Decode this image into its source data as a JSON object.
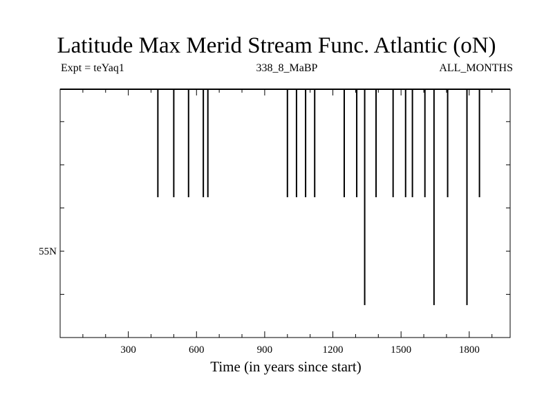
{
  "chart_data": {
    "type": "line",
    "title": "Latitude Max Merid Stream Func. Atlantic (oN)",
    "subtitle_left": "Expt = teYaq1",
    "subtitle_center": "338_8_MaBP",
    "subtitle_right": "ALL_MONTHS",
    "xlabel": "Time (in years since start)",
    "ylabel": "",
    "xlim": [
      0,
      1980
    ],
    "ylim": [
      53.0,
      58.75
    ],
    "x_ticks": [
      300,
      600,
      900,
      1200,
      1500,
      1800
    ],
    "x_tick_labels": [
      "300",
      "600",
      "900",
      "1200",
      "1500",
      "1800"
    ],
    "x_minor_step": 100,
    "y_ticks": [
      54,
      55,
      56,
      57,
      58
    ],
    "y_tick_labels": [
      {
        "value": 55,
        "label": "55N"
      }
    ],
    "grid": false,
    "baseline_value": 58.75,
    "line_color": "#000000",
    "drops": [
      {
        "x": 430,
        "y": 56.25
      },
      {
        "x": 500,
        "y": 56.25
      },
      {
        "x": 565,
        "y": 56.25
      },
      {
        "x": 630,
        "y": 56.25
      },
      {
        "x": 650,
        "y": 56.25
      },
      {
        "x": 1000,
        "y": 56.25
      },
      {
        "x": 1040,
        "y": 56.25
      },
      {
        "x": 1080,
        "y": 56.25
      },
      {
        "x": 1120,
        "y": 56.25
      },
      {
        "x": 1250,
        "y": 56.25
      },
      {
        "x": 1305,
        "y": 56.25
      },
      {
        "x": 1340,
        "y": 53.75
      },
      {
        "x": 1390,
        "y": 56.25
      },
      {
        "x": 1465,
        "y": 56.25
      },
      {
        "x": 1520,
        "y": 56.25
      },
      {
        "x": 1550,
        "y": 56.25
      },
      {
        "x": 1605,
        "y": 56.25
      },
      {
        "x": 1645,
        "y": 53.75
      },
      {
        "x": 1705,
        "y": 56.25
      },
      {
        "x": 1790,
        "y": 53.75
      },
      {
        "x": 1845,
        "y": 56.25
      }
    ]
  }
}
